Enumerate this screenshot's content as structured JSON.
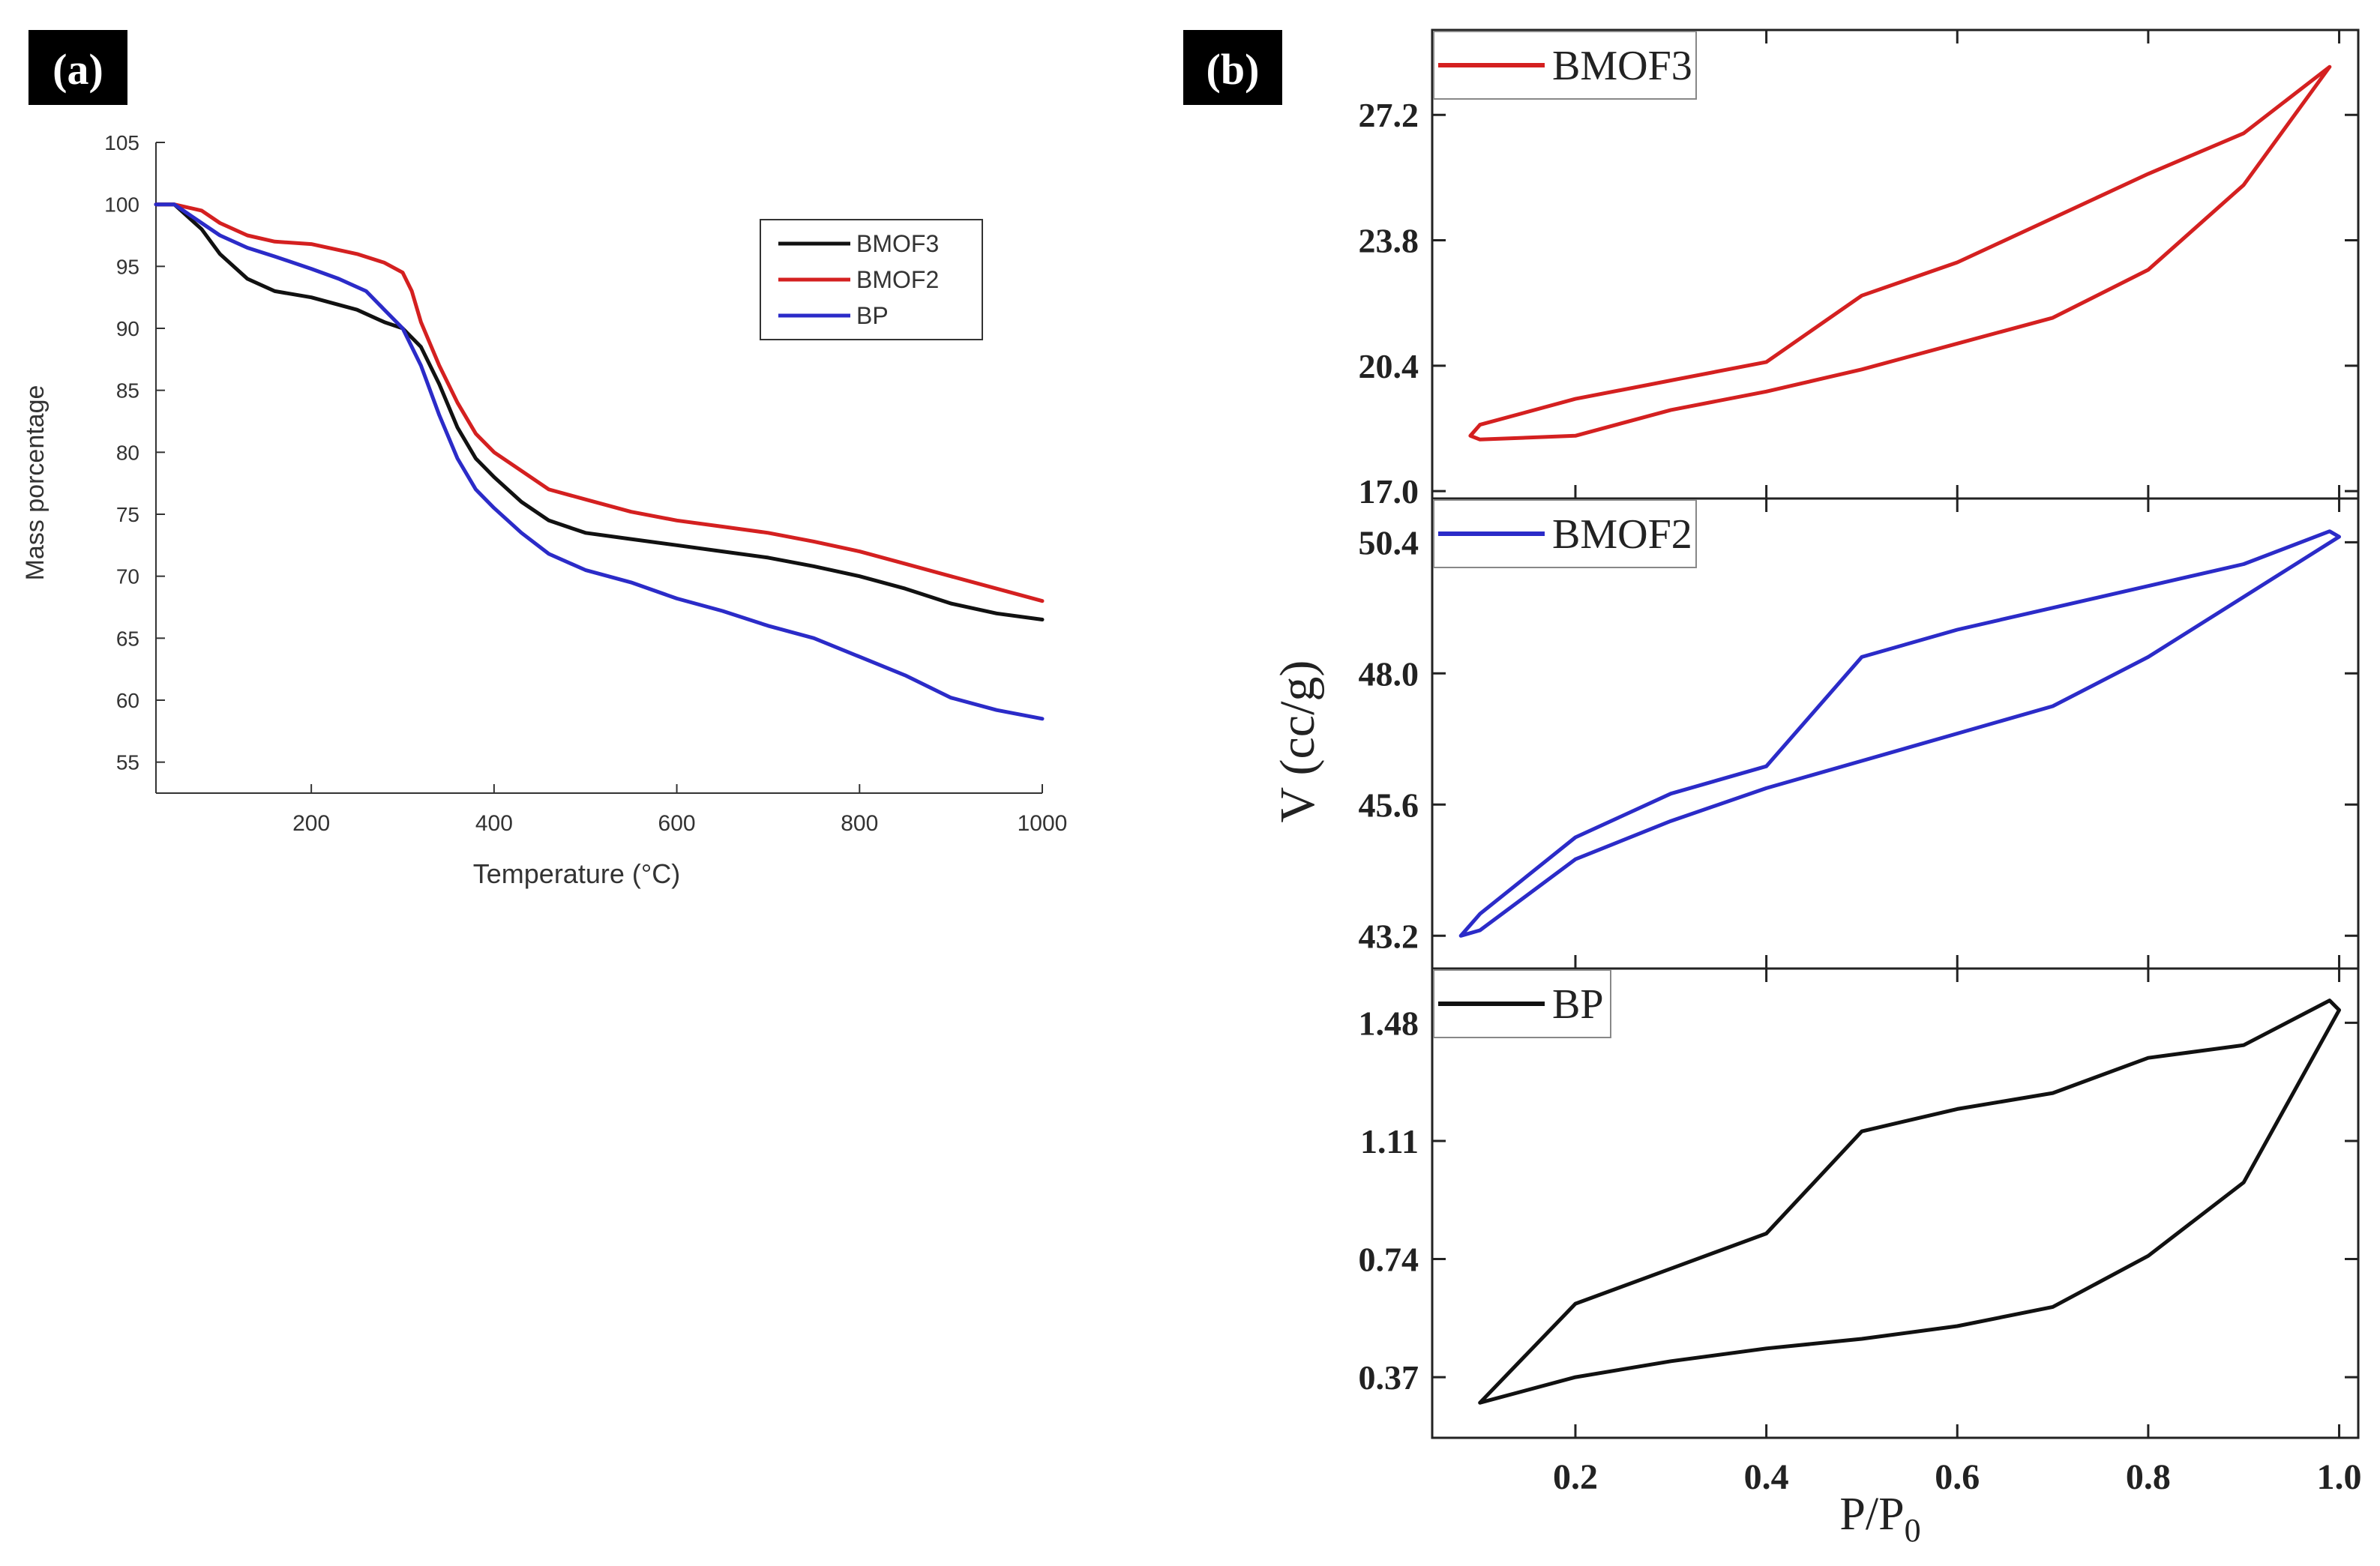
{
  "panels": {
    "a_label": "(a)",
    "b_label": "(b)"
  },
  "chart_data": [
    {
      "id": "tga",
      "type": "line",
      "xlabel": "Temperature (°C)",
      "ylabel": "Mass porcentage",
      "xlim": [
        30,
        1000
      ],
      "ylim": [
        52.5,
        105
      ],
      "xticks": [
        200,
        400,
        600,
        800,
        1000
      ],
      "yticks": [
        55,
        60,
        65,
        70,
        75,
        80,
        85,
        90,
        95,
        100,
        105
      ],
      "legend_position": "top-right",
      "series": [
        {
          "name": "BMOF3",
          "color": "#111111",
          "x": [
            30,
            50,
            80,
            100,
            130,
            160,
            200,
            250,
            280,
            300,
            320,
            340,
            360,
            380,
            400,
            430,
            460,
            500,
            550,
            600,
            650,
            700,
            750,
            800,
            850,
            900,
            950,
            1000
          ],
          "y": [
            100,
            100,
            98,
            96,
            94,
            93,
            92.5,
            91.5,
            90.5,
            90,
            88.5,
            85.5,
            82,
            79.5,
            78,
            76,
            74.5,
            73.5,
            73,
            72.5,
            72,
            71.5,
            70.8,
            70,
            69,
            67.8,
            67,
            66.5
          ]
        },
        {
          "name": "BMOF2",
          "color": "#d42020",
          "x": [
            30,
            50,
            80,
            100,
            130,
            160,
            200,
            250,
            280,
            300,
            310,
            320,
            340,
            360,
            380,
            400,
            430,
            460,
            500,
            550,
            600,
            650,
            700,
            750,
            800,
            850,
            900,
            950,
            1000
          ],
          "y": [
            100,
            100,
            99.5,
            98.5,
            97.5,
            97,
            96.8,
            96,
            95.3,
            94.5,
            93,
            90.5,
            87,
            84,
            81.5,
            80,
            78.5,
            77,
            76.2,
            75.2,
            74.5,
            74,
            73.5,
            72.8,
            72,
            71,
            70,
            69,
            68
          ]
        },
        {
          "name": "BP",
          "color": "#2b2bc8",
          "x": [
            30,
            50,
            80,
            100,
            130,
            160,
            200,
            230,
            260,
            280,
            300,
            320,
            340,
            360,
            380,
            400,
            430,
            460,
            500,
            550,
            600,
            650,
            700,
            750,
            800,
            850,
            900,
            950,
            1000
          ],
          "y": [
            100,
            100,
            98.5,
            97.5,
            96.5,
            95.8,
            94.8,
            94,
            93,
            91.5,
            90,
            87,
            83,
            79.5,
            77,
            75.5,
            73.5,
            71.8,
            70.5,
            69.5,
            68.2,
            67.2,
            66,
            65,
            63.5,
            62,
            60.2,
            59.2,
            58.5
          ]
        }
      ]
    },
    {
      "id": "isotherms",
      "type": "line",
      "xlabel_main": "P/P",
      "xlabel_sub": "0",
      "ylabel": "V (cc/g)",
      "xlim": [
        0.05,
        1.02
      ],
      "xticks": [
        "0.2",
        "0.4",
        "0.6",
        "0.8",
        "1.0"
      ],
      "xtick_values": [
        0.2,
        0.4,
        0.6,
        0.8,
        1.0
      ],
      "subplots": [
        {
          "name": "BMOF3",
          "color": "#d42020",
          "ylim": [
            16.8,
            29.5
          ],
          "yticks": [
            "17.0",
            "20.4",
            "23.8",
            "27.2"
          ],
          "ytick_values": [
            17.0,
            20.4,
            23.8,
            27.2
          ],
          "x": [
            0.09,
            0.1,
            0.2,
            0.3,
            0.4,
            0.5,
            0.6,
            0.7,
            0.8,
            0.9,
            0.99,
            0.9,
            0.8,
            0.7,
            0.6,
            0.5,
            0.4,
            0.3,
            0.2,
            0.1,
            0.09
          ],
          "y": [
            18.5,
            18.8,
            19.5,
            20.0,
            20.5,
            22.3,
            23.2,
            24.4,
            25.6,
            26.7,
            28.5,
            25.3,
            23.0,
            21.7,
            21.0,
            20.3,
            19.7,
            19.2,
            18.5,
            18.4,
            18.5
          ]
        },
        {
          "name": "BMOF2",
          "color": "#2b2bc8",
          "ylim": [
            42.6,
            51.2
          ],
          "yticks": [
            "43.2",
            "45.6",
            "48.0",
            "50.4"
          ],
          "ytick_values": [
            43.2,
            45.6,
            48.0,
            50.4
          ],
          "x": [
            0.08,
            0.1,
            0.2,
            0.3,
            0.4,
            0.5,
            0.6,
            0.7,
            0.8,
            0.9,
            0.99,
            1.0,
            0.9,
            0.8,
            0.7,
            0.6,
            0.5,
            0.4,
            0.3,
            0.2,
            0.1,
            0.08
          ],
          "y": [
            43.2,
            43.6,
            45.0,
            45.8,
            46.3,
            48.3,
            48.8,
            49.2,
            49.6,
            50.0,
            50.6,
            50.5,
            49.4,
            48.3,
            47.4,
            46.9,
            46.4,
            45.9,
            45.3,
            44.6,
            43.3,
            43.2
          ]
        },
        {
          "name": "BP",
          "color": "#111111",
          "ylim": [
            0.18,
            1.65
          ],
          "yticks": [
            "0.37",
            "0.74",
            "1.11",
            "1.48"
          ],
          "ytick_values": [
            0.37,
            0.74,
            1.11,
            1.48
          ],
          "x": [
            0.1,
            0.2,
            0.3,
            0.4,
            0.5,
            0.6,
            0.7,
            0.8,
            0.9,
            0.99,
            1.0,
            0.9,
            0.8,
            0.7,
            0.6,
            0.5,
            0.4,
            0.3,
            0.2,
            0.1
          ],
          "y": [
            0.29,
            0.6,
            0.71,
            0.82,
            1.14,
            1.21,
            1.26,
            1.37,
            1.41,
            1.55,
            1.52,
            0.98,
            0.75,
            0.59,
            0.53,
            0.49,
            0.46,
            0.42,
            0.37,
            0.29
          ]
        }
      ]
    }
  ]
}
